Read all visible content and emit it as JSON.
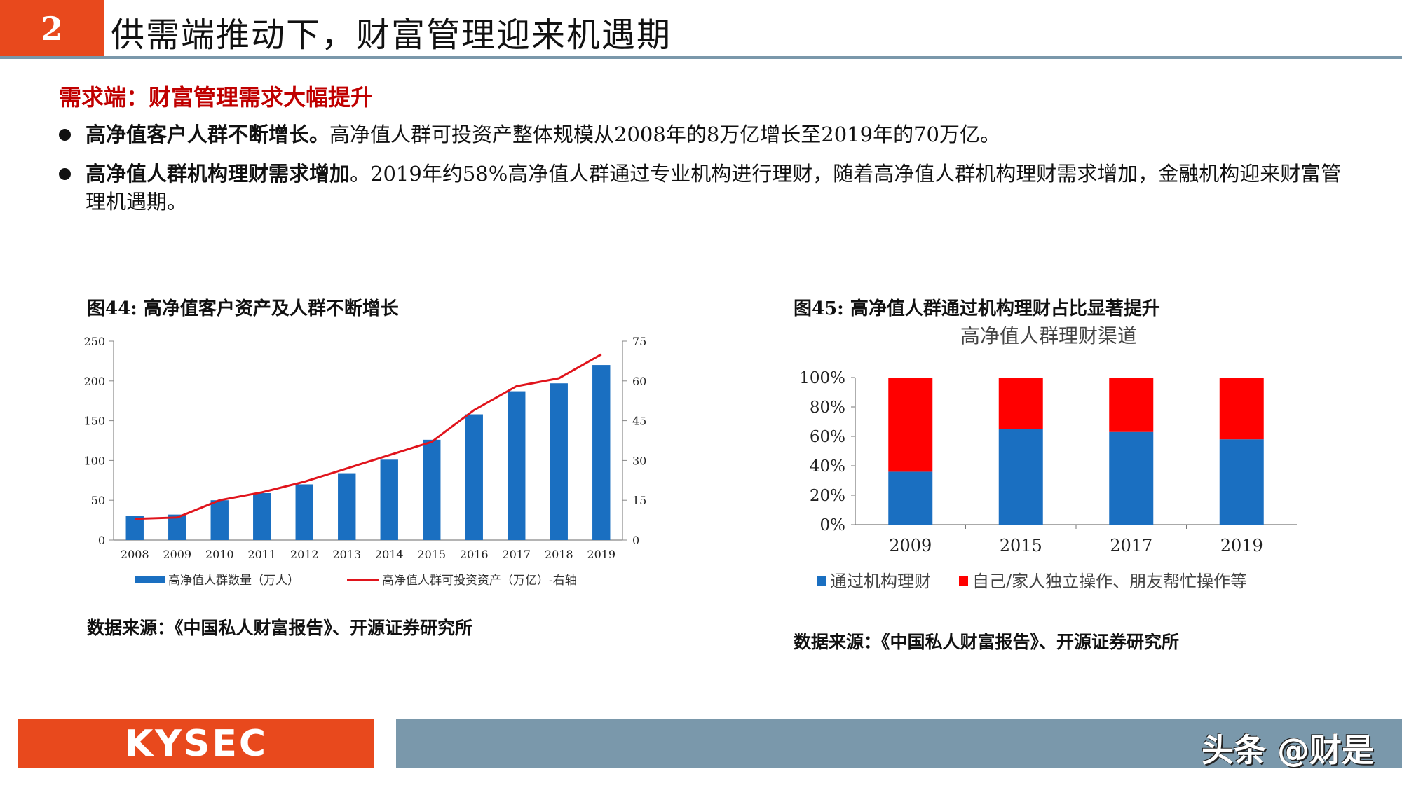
{
  "header": {
    "number": "2",
    "title": "供需端推动下，财富管理迎来机遇期"
  },
  "section_title": "需求端：财富管理需求大幅提升",
  "bullets": [
    {
      "bold": "高净值客户人群不断增长。",
      "text": "高净值人群可投资产整体规模从2008年的8万亿增长至2019年的70万亿。"
    },
    {
      "bold": "高净值人群机构理财需求增加",
      "text": "。2019年约58%高净值人群通过专业机构进行理财，随着高净值人群机构理财需求增加，金融机构迎来财富管理机遇期。"
    }
  ],
  "figures": {
    "fig44": {
      "title": "图44:  高净值客户资产及人群不断增长",
      "source": "数据来源：《中国私人财富报告》、开源证券研究所"
    },
    "fig45": {
      "title": "图45:  高净值人群通过机构理财占比显著提升",
      "source": "数据来源：《中国私人财富报告》、开源证券研究所"
    }
  },
  "chart_data": [
    {
      "type": "bar",
      "title": "",
      "categories": [
        "2008",
        "2009",
        "2010",
        "2011",
        "2012",
        "2013",
        "2014",
        "2015",
        "2016",
        "2017",
        "2018",
        "2019"
      ],
      "series": [
        {
          "name": "高净值人群数量（万人）",
          "type": "bar",
          "axis": "left",
          "values": [
            30,
            32,
            50,
            59,
            70,
            84,
            101,
            126,
            158,
            187,
            197,
            220
          ]
        },
        {
          "name": "高净值人群可投资资产（万亿）-右轴",
          "type": "line",
          "axis": "right",
          "values": [
            8,
            8.5,
            15,
            18,
            22,
            27,
            32,
            37,
            49,
            58,
            61,
            70
          ]
        }
      ],
      "ylim_left": [
        0,
        250
      ],
      "yticks_left": [
        "0",
        "50",
        "100",
        "150",
        "200",
        "250"
      ],
      "ylim_right": [
        0,
        75
      ],
      "yticks_right": [
        "0",
        "15",
        "30",
        "45",
        "60",
        "75"
      ],
      "legend_position": "bottom",
      "colors": {
        "bar": "#1a6fc1",
        "line": "#e0141c"
      }
    },
    {
      "type": "bar",
      "stacked": true,
      "title": "高净值人群理财渠道",
      "categories": [
        "2009",
        "2015",
        "2017",
        "2019"
      ],
      "series": [
        {
          "name": "通过机构理财",
          "values": [
            36,
            65,
            63,
            58
          ]
        },
        {
          "name": "自己/家人独立操作、朋友帮忙操作等",
          "values": [
            64,
            35,
            37,
            42
          ]
        }
      ],
      "ylim": [
        0,
        100
      ],
      "yticks": [
        "0%",
        "20%",
        "40%",
        "60%",
        "80%",
        "100%"
      ],
      "legend_position": "bottom",
      "colors": {
        "series1": "#1a6fc1",
        "series2": "#ff0000"
      }
    }
  ],
  "footer": {
    "brand": "KYSEC",
    "watermark": "头条 @财是"
  }
}
